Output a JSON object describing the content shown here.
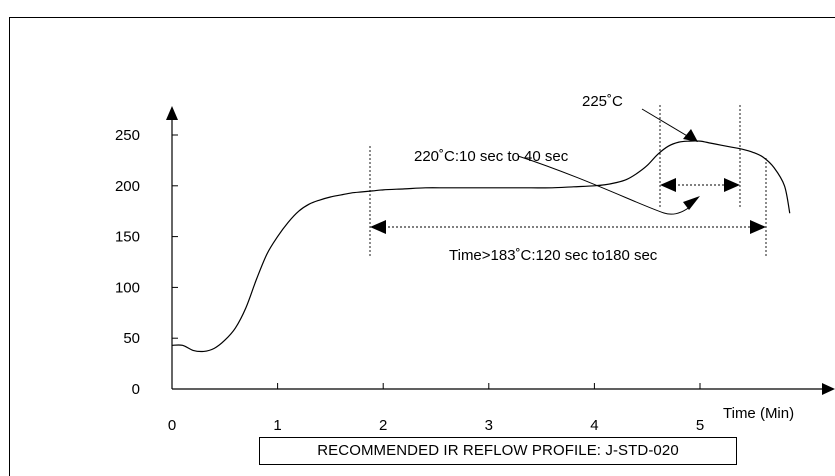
{
  "chart_data": {
    "type": "line",
    "title": "",
    "xlabel": "Time (Min)",
    "ylabel": "",
    "xlim": [
      0,
      6
    ],
    "ylim": [
      0,
      250
    ],
    "x_ticks": [
      0,
      1,
      2,
      3,
      4,
      5
    ],
    "y_ticks": [
      0,
      50,
      100,
      150,
      200,
      250
    ],
    "series": [
      {
        "name": "",
        "color": "#000000",
        "x": [
          0,
          0.1,
          0.2,
          0.3,
          0.4,
          0.5,
          0.6,
          0.7,
          0.8,
          0.9,
          1.0,
          1.1,
          1.2,
          1.3,
          1.4,
          1.5,
          1.6,
          1.7,
          1.8,
          1.9,
          2.0,
          2.2,
          2.4,
          2.6,
          2.8,
          3.0,
          3.2,
          3.4,
          3.6,
          3.8,
          4.0,
          4.1,
          4.2,
          4.3,
          4.4,
          4.5,
          4.6,
          4.7,
          4.8,
          4.9,
          5.0,
          5.1,
          5.2,
          5.3,
          5.4,
          5.5,
          5.6,
          5.7,
          5.8,
          5.85
        ],
        "y": [
          43,
          43,
          38,
          37,
          40,
          48,
          60,
          80,
          108,
          133,
          150,
          164,
          175,
          182,
          186,
          189,
          191,
          193,
          194,
          195,
          196,
          197,
          198,
          198,
          198,
          198,
          198,
          198,
          198,
          199,
          200,
          201,
          203,
          206,
          212,
          220,
          231,
          239,
          243,
          244,
          244,
          242,
          240,
          238,
          236,
          233,
          228,
          218,
          200,
          173
        ]
      }
    ],
    "annotations": {
      "peak_label": "225˚C",
      "time_above_220": "220˚C:10 sec to 40 sec",
      "time_above_183": "Time>183˚C:120 sec to180 sec"
    },
    "grid": false,
    "legend": "none"
  },
  "caption": "RECOMMENDED IR REFLOW PROFILE: J-STD-020"
}
